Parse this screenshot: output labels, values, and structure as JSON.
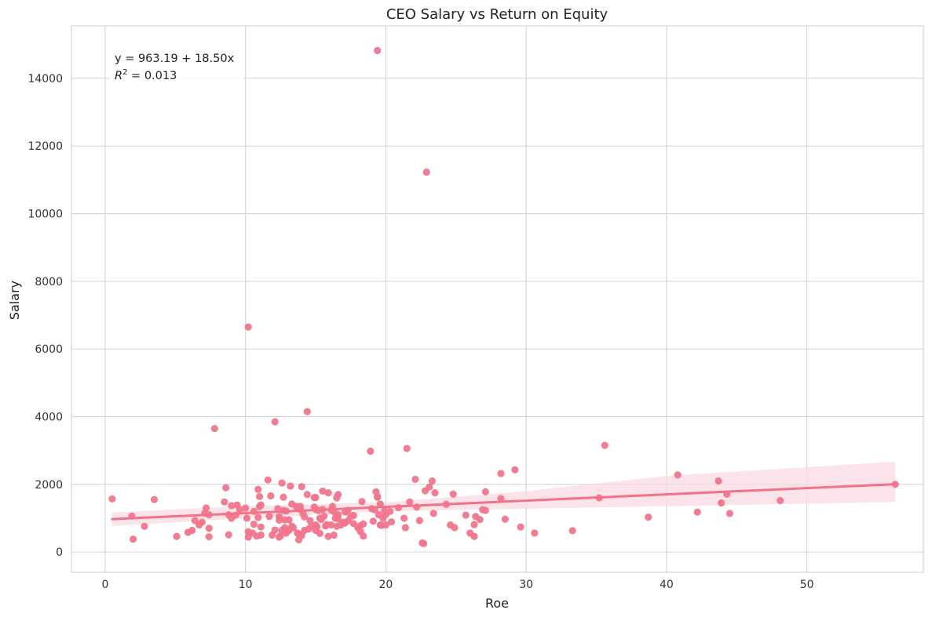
{
  "chart_data": {
    "type": "scatter",
    "title": "CEO Salary vs Return on Equity",
    "xlabel": "Roe",
    "ylabel": "Salary",
    "xlim": [
      -2.4,
      58.3
    ],
    "ylim": [
      -600,
      15550
    ],
    "xticks": [
      0,
      10,
      20,
      30,
      40,
      50
    ],
    "yticks": [
      0,
      2000,
      4000,
      6000,
      8000,
      10000,
      12000,
      14000
    ],
    "grid": true,
    "colors": {
      "point": "#f0768c",
      "line": "#f07389",
      "band": "#fadbe1",
      "grid": "#d0d0d0",
      "frame": "#cccccc"
    },
    "annotation": {
      "line1": "y = 963.19 + 18.50x",
      "r2_prefix": "R",
      "r2_sup": "2",
      "r2_suffix": " = 0.013",
      "position": "top-left"
    },
    "regression": {
      "intercept": 963.19,
      "slope": 18.5,
      "x_range": [
        0.5,
        56.3
      ]
    },
    "confidence_band": [
      [
        0.5,
        770,
        1170
      ],
      [
        10,
        1000,
        1360
      ],
      [
        20,
        1200,
        1470
      ],
      [
        30,
        1280,
        1800
      ],
      [
        40,
        1350,
        2250
      ],
      [
        56.3,
        1480,
        2670
      ]
    ],
    "points": [
      [
        0.5,
        1570
      ],
      [
        1.9,
        1060
      ],
      [
        2.0,
        380
      ],
      [
        2.8,
        760
      ],
      [
        3.5,
        1550
      ],
      [
        5.1,
        460
      ],
      [
        5.9,
        580
      ],
      [
        6.2,
        640
      ],
      [
        6.4,
        930
      ],
      [
        6.7,
        800
      ],
      [
        6.9,
        880
      ],
      [
        7.1,
        1150
      ],
      [
        7.2,
        1300
      ],
      [
        7.4,
        1100
      ],
      [
        7.4,
        700
      ],
      [
        7.4,
        450
      ],
      [
        7.8,
        3650
      ],
      [
        8.5,
        1480
      ],
      [
        8.6,
        1900
      ],
      [
        8.8,
        1100
      ],
      [
        8.8,
        510
      ],
      [
        9.0,
        1370
      ],
      [
        9.0,
        1000
      ],
      [
        9.3,
        1090
      ],
      [
        9.4,
        1390
      ],
      [
        9.6,
        1250
      ],
      [
        10.0,
        1300
      ],
      [
        10.1,
        1000
      ],
      [
        10.2,
        440
      ],
      [
        10.2,
        600
      ],
      [
        10.2,
        6650
      ],
      [
        10.5,
        560
      ],
      [
        10.6,
        1200
      ],
      [
        10.6,
        820
      ],
      [
        10.8,
        470
      ],
      [
        10.9,
        1850
      ],
      [
        10.9,
        1020
      ],
      [
        11.0,
        1640
      ],
      [
        11.0,
        1340
      ],
      [
        11.1,
        1390
      ],
      [
        11.1,
        740
      ],
      [
        11.1,
        500
      ],
      [
        11.6,
        2130
      ],
      [
        11.7,
        1050
      ],
      [
        11.8,
        1660
      ],
      [
        11.9,
        500
      ],
      [
        12.1,
        650
      ],
      [
        12.1,
        3850
      ],
      [
        12.3,
        1280
      ],
      [
        12.4,
        1050
      ],
      [
        12.4,
        940
      ],
      [
        12.4,
        440
      ],
      [
        12.5,
        480
      ],
      [
        12.6,
        640
      ],
      [
        12.6,
        2040
      ],
      [
        12.7,
        1620
      ],
      [
        12.7,
        1230
      ],
      [
        12.8,
        950
      ],
      [
        12.8,
        720
      ],
      [
        12.9,
        560
      ],
      [
        12.9,
        1210
      ],
      [
        13.1,
        950
      ],
      [
        13.1,
        640
      ],
      [
        13.2,
        1950
      ],
      [
        13.3,
        1420
      ],
      [
        13.3,
        760
      ],
      [
        13.4,
        720
      ],
      [
        13.6,
        1350
      ],
      [
        13.7,
        560
      ],
      [
        13.8,
        360
      ],
      [
        13.8,
        530
      ],
      [
        13.9,
        1350
      ],
      [
        13.9,
        1260
      ],
      [
        14.0,
        1930
      ],
      [
        14.0,
        490
      ],
      [
        14.1,
        1130
      ],
      [
        14.2,
        1040
      ],
      [
        14.2,
        640
      ],
      [
        14.4,
        1700
      ],
      [
        14.4,
        4150
      ],
      [
        14.5,
        680
      ],
      [
        14.6,
        930
      ],
      [
        14.7,
        780
      ],
      [
        14.9,
        1610
      ],
      [
        14.9,
        1330
      ],
      [
        15.0,
        1610
      ],
      [
        15.0,
        1260
      ],
      [
        15.0,
        800
      ],
      [
        15.0,
        640
      ],
      [
        15.1,
        740
      ],
      [
        15.2,
        1230
      ],
      [
        15.3,
        1000
      ],
      [
        15.3,
        550
      ],
      [
        15.4,
        960
      ],
      [
        15.5,
        1800
      ],
      [
        15.5,
        1260
      ],
      [
        15.6,
        1060
      ],
      [
        15.7,
        770
      ],
      [
        15.8,
        810
      ],
      [
        15.9,
        1750
      ],
      [
        15.9,
        460
      ],
      [
        16.1,
        800
      ],
      [
        16.1,
        1240
      ],
      [
        16.2,
        1350
      ],
      [
        16.3,
        500
      ],
      [
        16.3,
        1190
      ],
      [
        16.4,
        1000
      ],
      [
        16.5,
        1600
      ],
      [
        16.5,
        760
      ],
      [
        16.6,
        1700
      ],
      [
        16.6,
        1100
      ],
      [
        16.6,
        980
      ],
      [
        16.8,
        800
      ],
      [
        17.0,
        880
      ],
      [
        17.1,
        1180
      ],
      [
        17.1,
        860
      ],
      [
        17.3,
        1230
      ],
      [
        17.3,
        920
      ],
      [
        17.5,
        1050
      ],
      [
        17.7,
        1080
      ],
      [
        17.7,
        840
      ],
      [
        18.0,
        720
      ],
      [
        18.2,
        780
      ],
      [
        18.2,
        600
      ],
      [
        18.3,
        1490
      ],
      [
        18.4,
        830
      ],
      [
        18.4,
        470
      ],
      [
        18.9,
        2980
      ],
      [
        19.0,
        1280
      ],
      [
        19.1,
        910
      ],
      [
        19.2,
        1250
      ],
      [
        19.3,
        1780
      ],
      [
        19.4,
        1640
      ],
      [
        19.4,
        1620
      ],
      [
        19.5,
        1100
      ],
      [
        19.6,
        800
      ],
      [
        19.6,
        1420
      ],
      [
        19.7,
        790
      ],
      [
        19.8,
        1000
      ],
      [
        19.9,
        1220
      ],
      [
        20.0,
        800
      ],
      [
        20.0,
        1110
      ],
      [
        20.3,
        1200
      ],
      [
        20.4,
        890
      ],
      [
        20.9,
        1310
      ],
      [
        21.3,
        1000
      ],
      [
        21.4,
        720
      ],
      [
        21.5,
        3060
      ],
      [
        21.7,
        1480
      ],
      [
        22.1,
        2150
      ],
      [
        22.2,
        1330
      ],
      [
        22.4,
        930
      ],
      [
        22.6,
        270
      ],
      [
        22.7,
        250
      ],
      [
        22.8,
        1810
      ],
      [
        23.1,
        1920
      ],
      [
        23.3,
        2100
      ],
      [
        23.4,
        1140
      ],
      [
        23.5,
        1750
      ],
      [
        19.4,
        14820
      ],
      [
        22.9,
        11230
      ],
      [
        24.3,
        1410
      ],
      [
        24.6,
        800
      ],
      [
        24.8,
        1710
      ],
      [
        24.9,
        720
      ],
      [
        25.7,
        1090
      ],
      [
        26.0,
        560
      ],
      [
        26.3,
        460
      ],
      [
        26.3,
        810
      ],
      [
        26.4,
        1050
      ],
      [
        26.7,
        960
      ],
      [
        26.9,
        1250
      ],
      [
        27.1,
        1780
      ],
      [
        27.1,
        1230
      ],
      [
        28.2,
        2320
      ],
      [
        28.2,
        1580
      ],
      [
        28.5,
        970
      ],
      [
        29.2,
        2430
      ],
      [
        29.6,
        740
      ],
      [
        30.6,
        560
      ],
      [
        33.3,
        630
      ],
      [
        35.2,
        1600
      ],
      [
        35.6,
        3150
      ],
      [
        38.7,
        1030
      ],
      [
        40.8,
        2280
      ],
      [
        42.2,
        1180
      ],
      [
        43.7,
        2100
      ],
      [
        43.9,
        1450
      ],
      [
        44.3,
        1710
      ],
      [
        44.5,
        1140
      ],
      [
        48.1,
        1520
      ],
      [
        56.3,
        2000
      ]
    ]
  }
}
